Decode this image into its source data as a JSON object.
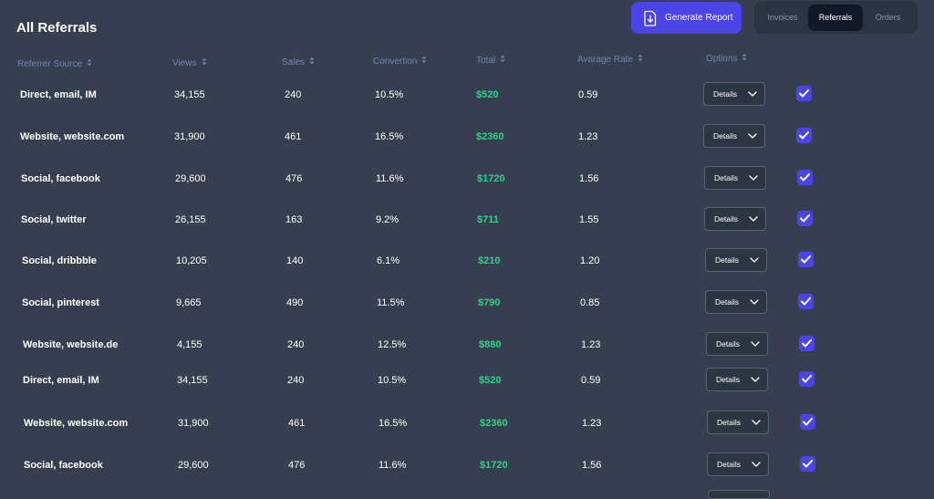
{
  "header": {
    "title": "All Referrals",
    "generate_label": "Generate Report",
    "tabs": [
      "Invoices",
      "Referrals",
      "Orders"
    ],
    "active_tab": "Referrals"
  },
  "columns": [
    "Referrer Source",
    "Views",
    "Sales",
    "Convertion",
    "Total",
    "Avarage Rate",
    "Options"
  ],
  "colors": {
    "accent": "#4b44e6",
    "total": "#2fd28c",
    "background": "#363f4f",
    "header_text": "#6f86b2"
  },
  "icons": {
    "generate": "download-document-icon",
    "sort": "sort-icon",
    "dropdown": "chevron-down-icon",
    "checkbox": "checkmark-icon"
  },
  "rows": [
    {
      "source": "Direct, email, IM",
      "views": "34,155",
      "sales": "240",
      "conversion": "10.5%",
      "total": "$520",
      "rate": "0.59",
      "option": "Details",
      "checked": true
    },
    {
      "source": "Website, website.com",
      "views": "31,900",
      "sales": "461",
      "conversion": "16.5%",
      "total": "$2360",
      "rate": "1.23",
      "option": "Details",
      "checked": true
    },
    {
      "source": "Social, facebook",
      "views": "29,600",
      "sales": "476",
      "conversion": "11.6%",
      "total": "$1720",
      "rate": "1.56",
      "option": "Details",
      "checked": true
    },
    {
      "source": "Social, twitter",
      "views": "26,155",
      "sales": "163",
      "conversion": "9.2%",
      "total": "$711",
      "rate": "1.55",
      "option": "Details",
      "checked": true
    },
    {
      "source": "Social, dribbble",
      "views": "10,205",
      "sales": "140",
      "conversion": "6.1%",
      "total": "$210",
      "rate": "1.20",
      "option": "Details",
      "checked": true
    },
    {
      "source": "Social, pinterest",
      "views": "9,665",
      "sales": "490",
      "conversion": "11.5%",
      "total": "$790",
      "rate": "0.85",
      "option": "Details",
      "checked": true
    },
    {
      "source": "Website, website.de",
      "views": "4,155",
      "sales": "240",
      "conversion": "12.5%",
      "total": "$880",
      "rate": "1.23",
      "option": "Details",
      "checked": true
    },
    {
      "source": "Direct, email, IM",
      "views": "34,155",
      "sales": "240",
      "conversion": "10.5%",
      "total": "$520",
      "rate": "0.59",
      "option": "Details",
      "checked": true
    },
    {
      "source": "Website, website.com",
      "views": "31,900",
      "sales": "461",
      "conversion": "16.5%",
      "total": "$2360",
      "rate": "1.23",
      "option": "Details",
      "checked": true
    },
    {
      "source": "Social, facebook",
      "views": "29,600",
      "sales": "476",
      "conversion": "11.6%",
      "total": "$1720",
      "rate": "1.56",
      "option": "Details",
      "checked": true
    }
  ]
}
